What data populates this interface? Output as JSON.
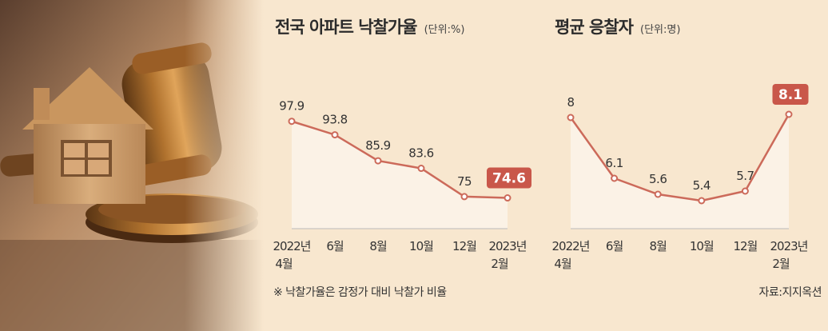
{
  "colors": {
    "line": "#cc6a5a",
    "area": "#fbf2e6",
    "highlight": "#c9574a",
    "background": "#f8e7cf"
  },
  "image_icons": [
    "house-model-icon",
    "judge-gavel-icon"
  ],
  "chart_data": [
    {
      "type": "line",
      "title": "전국 아파트 낙찰가율",
      "unit": "(단위:%)",
      "categories": [
        "2022년\n4월",
        "6월",
        "8월",
        "10월",
        "12월",
        "2023년\n2월"
      ],
      "values": [
        97.9,
        93.8,
        85.9,
        83.6,
        75,
        74.6
      ],
      "labels": [
        "97.9",
        "93.8",
        "85.9",
        "83.6",
        "75",
        "74.6"
      ],
      "highlight_last": true,
      "ylim": [
        65,
        110
      ],
      "grid": false,
      "footnote": "※ 낙찰가율은 감정가 대비 낙찰가 비율"
    },
    {
      "type": "line",
      "title": "평균 응찰자",
      "unit": "(단위:명)",
      "categories": [
        "2022년\n4월",
        "6월",
        "8월",
        "10월",
        "12월",
        "2023년\n2월"
      ],
      "values": [
        8,
        6.1,
        5.6,
        5.4,
        5.7,
        8.1
      ],
      "labels": [
        "8",
        "6.1",
        "5.6",
        "5.4",
        "5.7",
        "8.1"
      ],
      "highlight_last": true,
      "ylim": [
        4.5,
        9.1
      ],
      "grid": false,
      "footnote": "자료:지지옥션"
    }
  ]
}
